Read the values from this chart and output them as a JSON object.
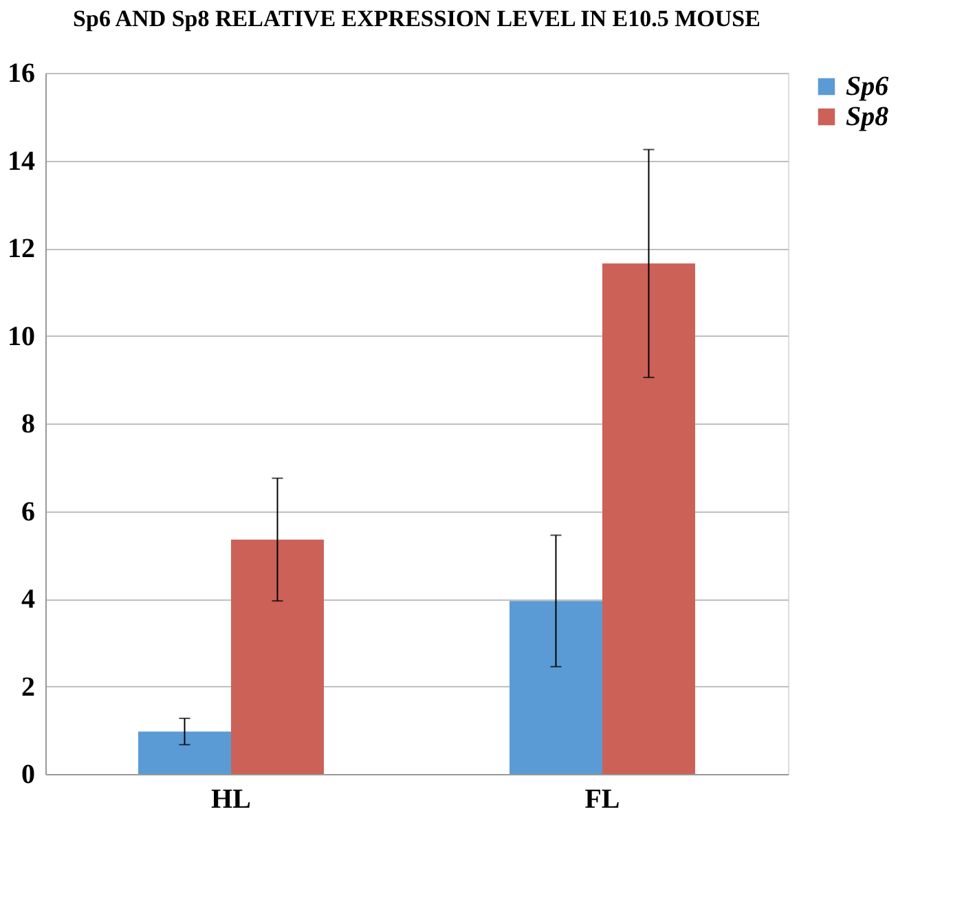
{
  "chart_data": {
    "type": "bar",
    "title": "Sp6 AND Sp8 RELATIVE EXPRESSION LEVEL IN E10.5 MOUSE",
    "categories": [
      "HL",
      "FL"
    ],
    "series": [
      {
        "name": "Sp6",
        "color": "#5b9bd5",
        "values": [
          0.97,
          3.95
        ],
        "errors": [
          0.3,
          1.5
        ]
      },
      {
        "name": "Sp8",
        "color": "#cc6158",
        "values": [
          5.35,
          11.65
        ],
        "errors": [
          1.4,
          2.6
        ]
      }
    ],
    "ylim": [
      0,
      16
    ],
    "yticks": [
      0,
      2,
      4,
      6,
      8,
      10,
      12,
      14,
      16
    ],
    "grid": "y",
    "legend": "right"
  }
}
